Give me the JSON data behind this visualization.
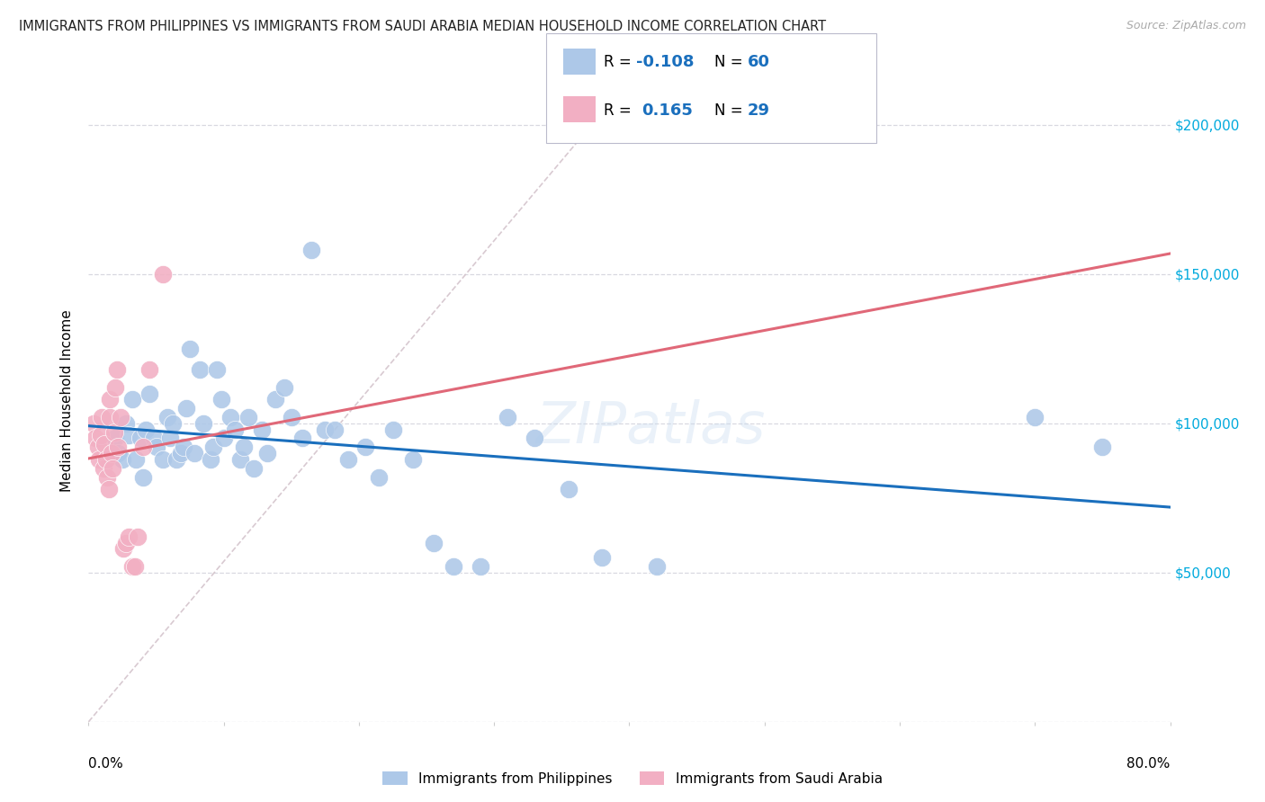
{
  "title": "IMMIGRANTS FROM PHILIPPINES VS IMMIGRANTS FROM SAUDI ARABIA MEDIAN HOUSEHOLD INCOME CORRELATION CHART",
  "source": "Source: ZipAtlas.com",
  "ylabel": "Median Household Income",
  "xmin": 0.0,
  "xmax": 0.8,
  "ymin": 0,
  "ymax": 215000,
  "blue_color": "#adc8e8",
  "pink_color": "#f2afc3",
  "trend_blue_color": "#1a6fbd",
  "trend_pink_color": "#e06878",
  "diagonal_color": "#d4c4cc",
  "grid_color": "#d8d8e0",
  "R_blue": -0.108,
  "N_blue": 60,
  "R_pink": 0.165,
  "N_pink": 29,
  "accent_color": "#00aadd",
  "legend_label_blue": "Immigrants from Philippines",
  "legend_label_pink": "Immigrants from Saudi Arabia",
  "blue_x": [
    0.02,
    0.022,
    0.025,
    0.028,
    0.03,
    0.032,
    0.035,
    0.038,
    0.04,
    0.042,
    0.045,
    0.048,
    0.05,
    0.055,
    0.058,
    0.06,
    0.062,
    0.065,
    0.068,
    0.07,
    0.072,
    0.075,
    0.078,
    0.082,
    0.085,
    0.09,
    0.092,
    0.095,
    0.098,
    0.1,
    0.105,
    0.108,
    0.112,
    0.115,
    0.118,
    0.122,
    0.128,
    0.132,
    0.138,
    0.145,
    0.15,
    0.158,
    0.165,
    0.175,
    0.182,
    0.192,
    0.205,
    0.215,
    0.225,
    0.24,
    0.255,
    0.27,
    0.29,
    0.31,
    0.33,
    0.355,
    0.38,
    0.42,
    0.7,
    0.75
  ],
  "blue_y": [
    95000,
    90000,
    88000,
    100000,
    96000,
    108000,
    88000,
    95000,
    82000,
    98000,
    110000,
    95000,
    92000,
    88000,
    102000,
    95000,
    100000,
    88000,
    90000,
    92000,
    105000,
    125000,
    90000,
    118000,
    100000,
    88000,
    92000,
    118000,
    108000,
    95000,
    102000,
    98000,
    88000,
    92000,
    102000,
    85000,
    98000,
    90000,
    108000,
    112000,
    102000,
    95000,
    158000,
    98000,
    98000,
    88000,
    92000,
    82000,
    98000,
    88000,
    60000,
    52000,
    52000,
    102000,
    95000,
    78000,
    55000,
    52000,
    102000,
    92000
  ],
  "pink_x": [
    0.004,
    0.005,
    0.007,
    0.008,
    0.009,
    0.01,
    0.011,
    0.012,
    0.013,
    0.014,
    0.015,
    0.016,
    0.016,
    0.017,
    0.018,
    0.019,
    0.02,
    0.021,
    0.022,
    0.024,
    0.026,
    0.028,
    0.03,
    0.032,
    0.034,
    0.036,
    0.04,
    0.045,
    0.055
  ],
  "pink_y": [
    100000,
    95000,
    92000,
    88000,
    96000,
    102000,
    85000,
    93000,
    88000,
    82000,
    78000,
    102000,
    108000,
    90000,
    85000,
    97000,
    112000,
    118000,
    92000,
    102000,
    58000,
    60000,
    62000,
    52000,
    52000,
    62000,
    92000,
    118000,
    150000
  ]
}
